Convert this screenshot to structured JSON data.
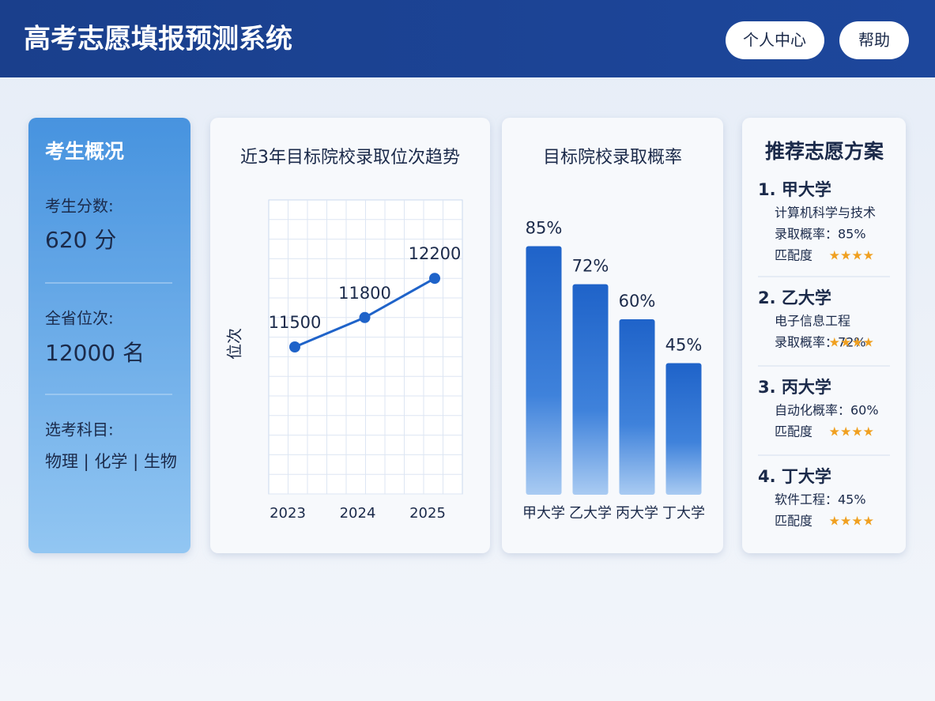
{
  "header": {
    "title": "高考志愿填报预测系统",
    "buttons": [
      "个人中心",
      "帮助"
    ]
  },
  "profile": {
    "title": "考生概况",
    "items": [
      {
        "label": "考生分数:",
        "value": "620 分"
      },
      {
        "label": "全省位次:",
        "value": "12000 名"
      },
      {
        "label": "选考科目:",
        "value": "物理 | 化学 | 生物"
      }
    ]
  },
  "chart_data": [
    {
      "type": "line",
      "title": "近3年目标院校录取位次趋势",
      "y_label": "位次",
      "categories": [
        "2023",
        "2024",
        "2025"
      ],
      "values": [
        11500,
        11800,
        12200
      ],
      "color": "#1f63c9",
      "ylim": [
        10000,
        13000
      ],
      "grid": true
    },
    {
      "type": "bar",
      "title": "目标院校录取概率",
      "categories": [
        "甲大学",
        "乙大学",
        "丙大学",
        "丁大学"
      ],
      "values": [
        85,
        72,
        60,
        45
      ],
      "value_labels": [
        "85%",
        "72%",
        "60%",
        "45%"
      ],
      "color": "#1f63c9",
      "ylim": [
        0,
        90
      ]
    }
  ],
  "recommendations": {
    "title": "推荐志愿方案",
    "items": [
      {
        "name": "1. 甲大学",
        "lines": [
          "计算机科学与技术",
          "录取概率：85%"
        ],
        "rating_label": "匹配度",
        "stars": "★★★★"
      },
      {
        "name": "2. 乙大学",
        "lines": [
          "电子信息工程"
        ],
        "rating_label": "录取概率：72%",
        "stars": "★★★★"
      },
      {
        "name": "3. 丙大学",
        "lines": [
          "自动化概率：60%"
        ],
        "rating_label": "匹配度",
        "stars": "★★★★"
      },
      {
        "name": "4. 丁大学",
        "lines": [
          "软件工程：45%"
        ],
        "rating_label": "匹配度",
        "stars": "★★★★"
      }
    ]
  }
}
